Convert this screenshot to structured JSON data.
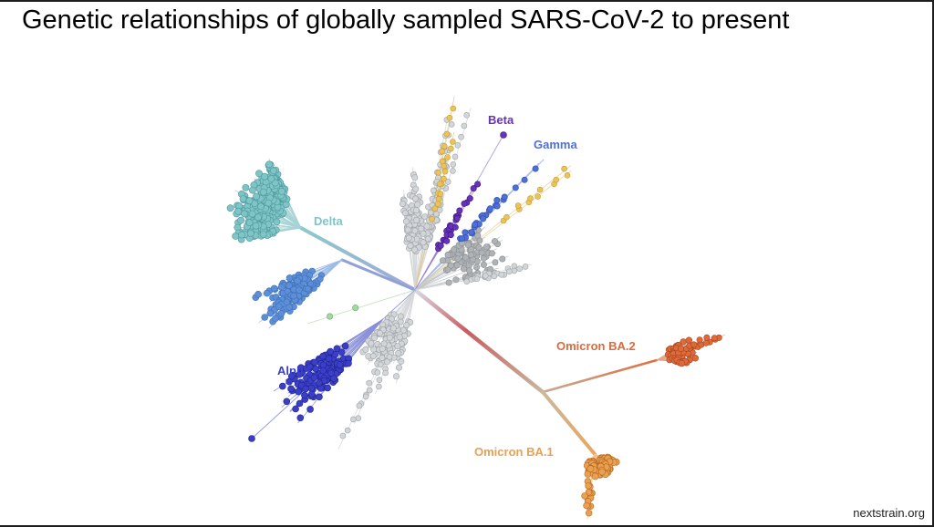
{
  "title": "Genetic relationships of globally sampled SARS-CoV-2 to present",
  "credit": "nextstrain.org",
  "clades": [
    {
      "label": "Delta",
      "color": "#7fc4c7"
    },
    {
      "label": "Alpha",
      "color": "#3b3fc8"
    },
    {
      "label": "Beta",
      "color": "#6a32b8"
    },
    {
      "label": "Gamma",
      "color": "#4f6fd6"
    },
    {
      "label": "Omicron BA.2",
      "color": "#dd6a3a"
    },
    {
      "label": "Omicron BA.1",
      "color": "#e9a050"
    }
  ],
  "colors": {
    "neutral": "#d3d6d9",
    "neutral_dark": "#b0b3b6",
    "yellow": "#eac35a",
    "green": "#a7d6a6",
    "mid_blue": "#5d8fd8"
  }
}
